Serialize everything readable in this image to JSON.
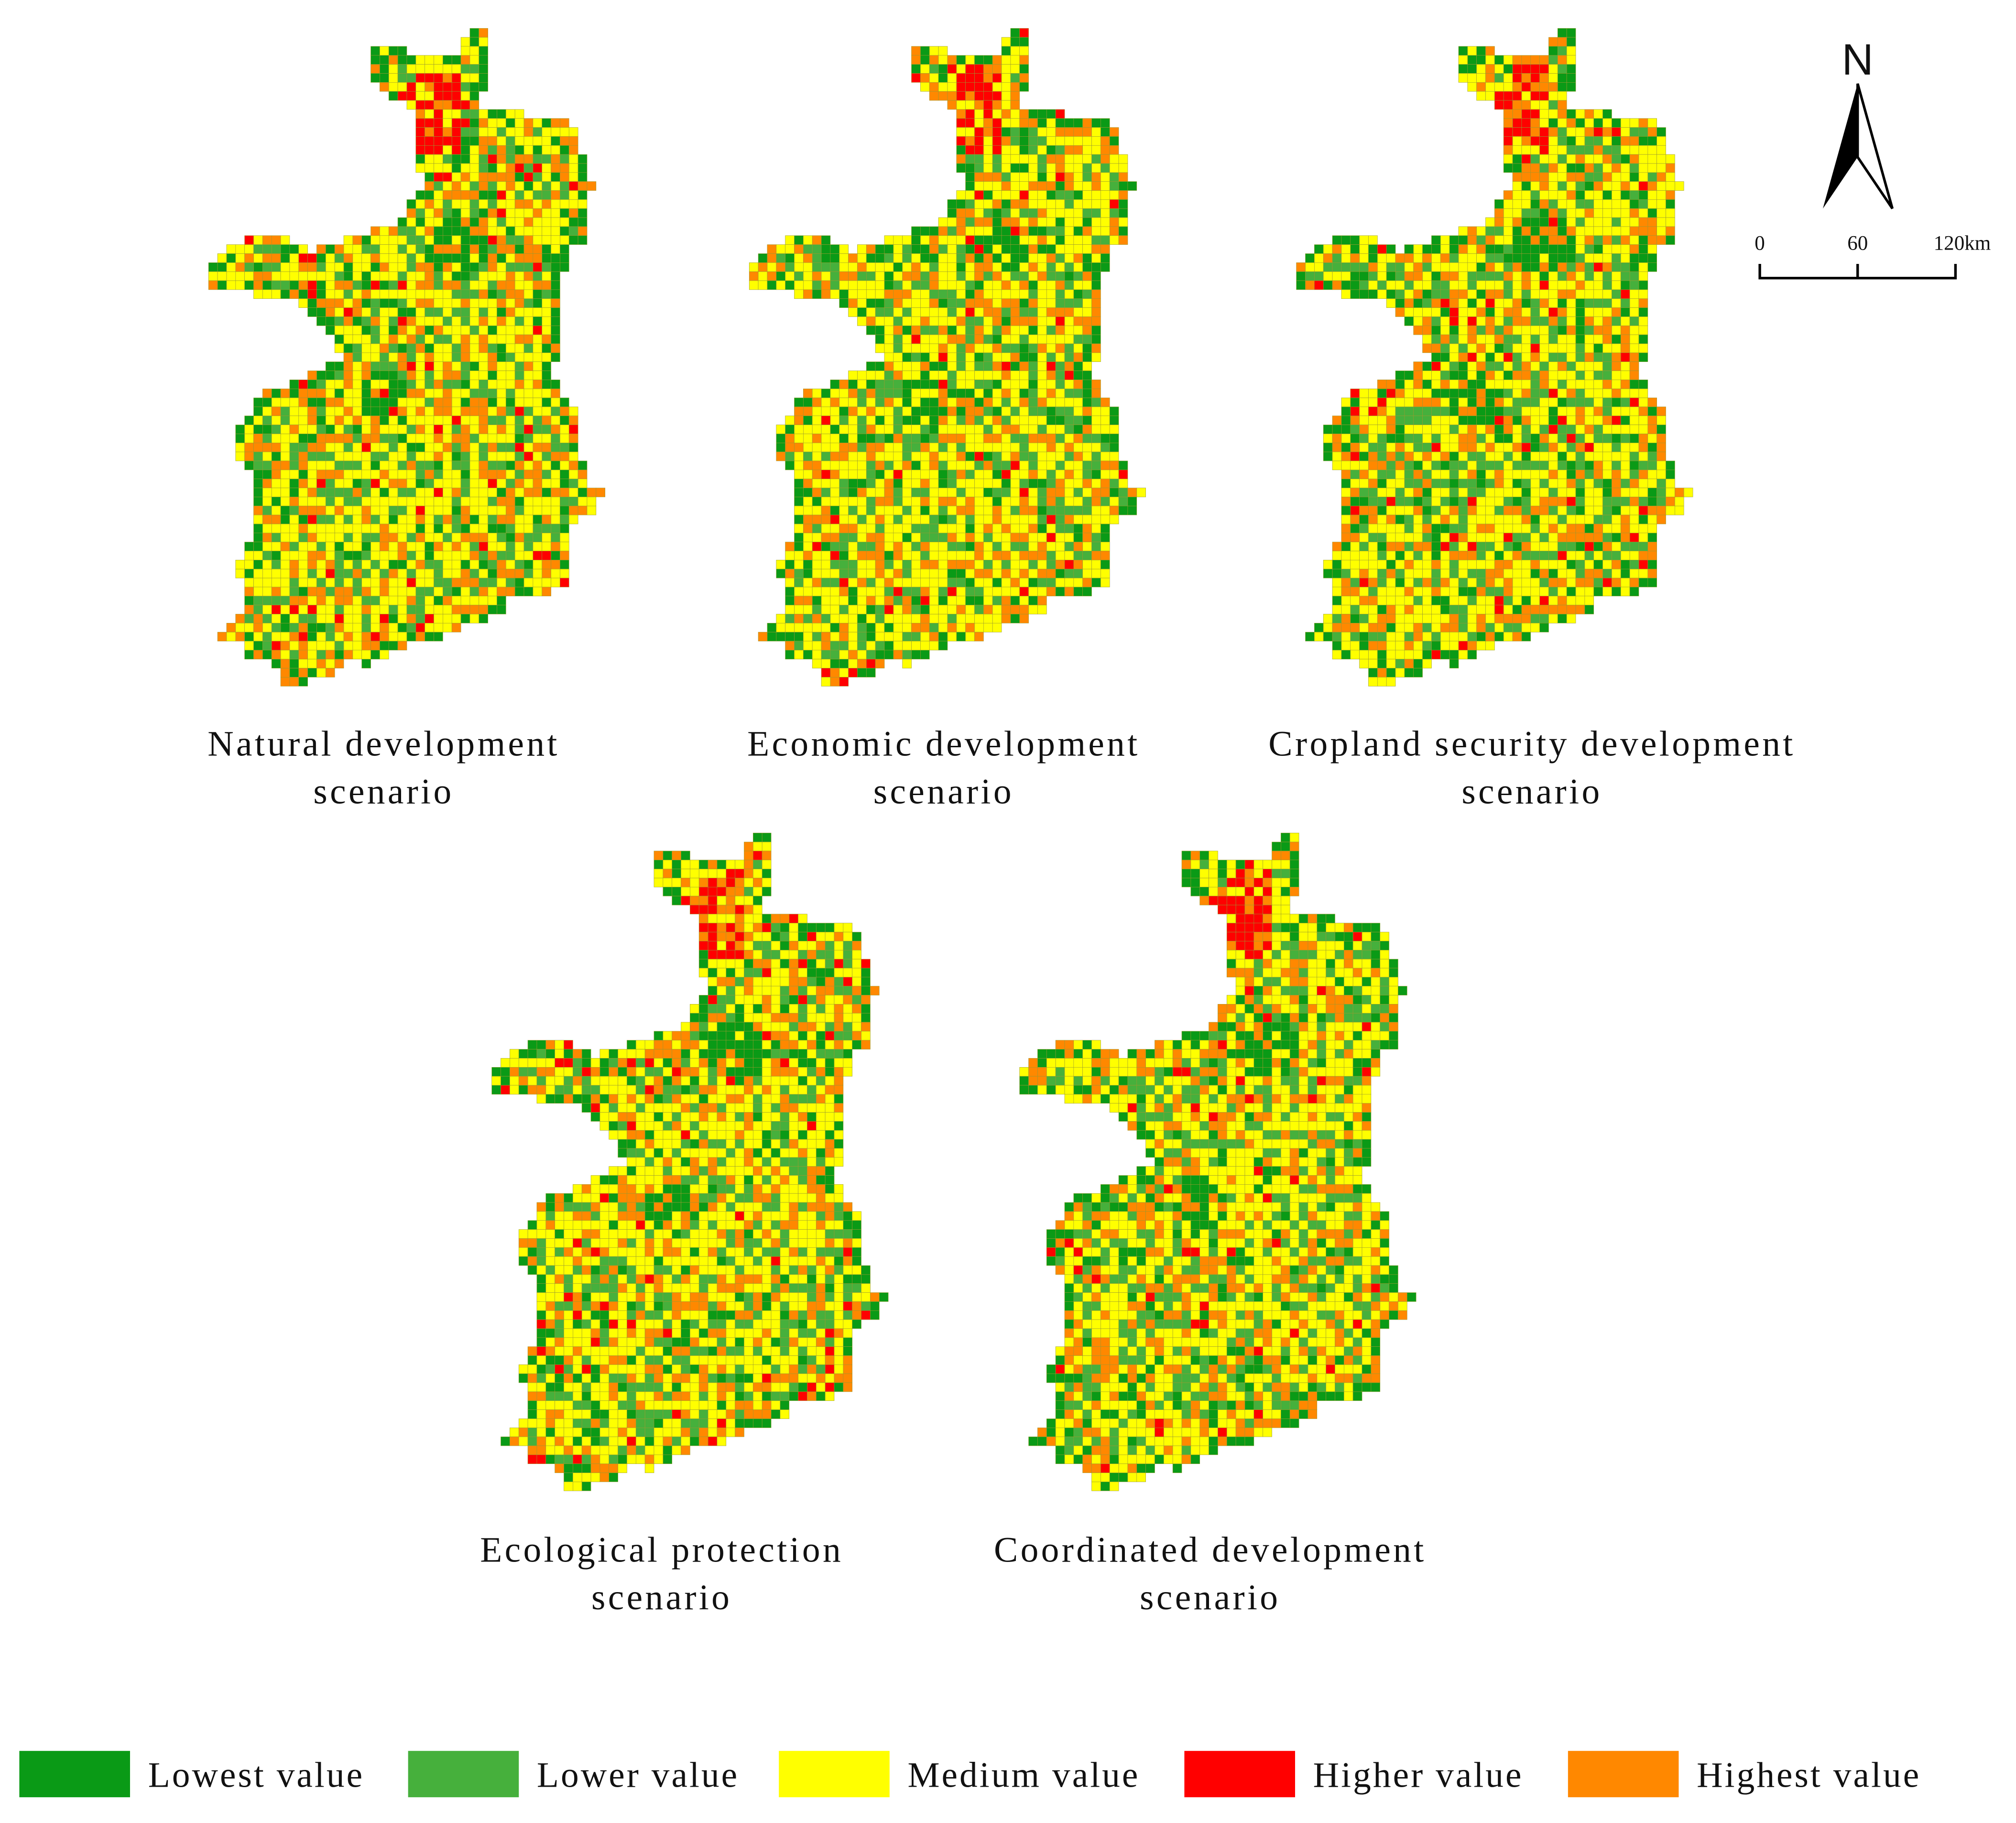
{
  "maps": [
    {
      "title_lines": [
        "Natural development",
        "scenario"
      ]
    },
    {
      "title_lines": [
        "Economic development",
        "scenario"
      ]
    },
    {
      "title_lines": [
        "Cropland security development",
        "scenario"
      ]
    },
    {
      "title_lines": [
        "Ecological protection",
        "scenario"
      ]
    },
    {
      "title_lines": [
        "Coordinated development",
        "scenario"
      ]
    }
  ],
  "legend": [
    {
      "label": "Lowest value",
      "color": "#0a9a16"
    },
    {
      "label": "Lower value",
      "color": "#46b03c"
    },
    {
      "label": "Medium value",
      "color": "#ffff00"
    },
    {
      "label": "Higher value",
      "color": "#ff0000"
    },
    {
      "label": "Highest value",
      "color": "#ff8800"
    }
  ],
  "north_arrow": {
    "label": "N"
  },
  "scale_bar": {
    "labels": [
      "0",
      "60",
      "120km"
    ]
  }
}
